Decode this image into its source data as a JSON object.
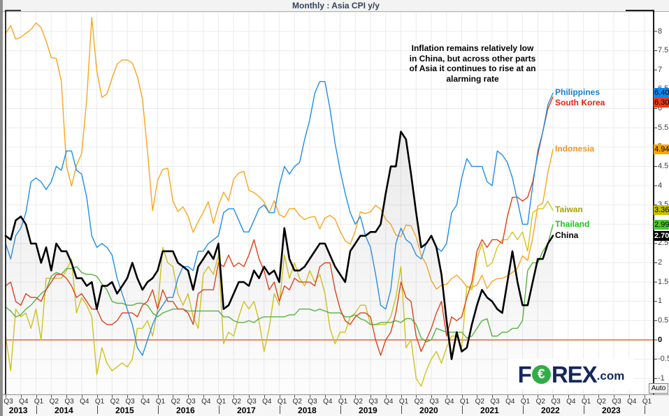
{
  "annotation": {
    "lines": [
      "Inflation remains relatively low",
      "in China, but across other parts",
      "of Asia it continues to rise at an",
      "alarming rate"
    ]
  },
  "watermark": {
    "text_left": "F",
    "symbol": "€",
    "text_right": "REX",
    "suffix": ".com"
  },
  "auto_button": {
    "label": "Auto"
  },
  "colors": {
    "zero_line": "#e8410e",
    "grid": "#ebebeb",
    "axis_frame": "#000000",
    "china_fill": "#8c8c8c"
  },
  "chart_data": {
    "type": "line",
    "title": "Monthly : Asia CPI y/y",
    "frequency": "monthly",
    "x_start": "2013-07",
    "x_axis_end": "2024-03",
    "data_end": "2022-07",
    "ylim": [
      -1.25,
      8.55
    ],
    "grid": true,
    "legend_position": "right-of-line-ends",
    "y_axis": {
      "ticks": [
        "-1",
        "-0.5",
        "0",
        "0.5",
        "1",
        "1.5",
        "2",
        "2.5",
        "3",
        "3.5",
        "4",
        "4.5",
        "5",
        "5.5",
        "6",
        "6.5",
        "7",
        "7.5",
        "8"
      ],
      "bold_tick": "0",
      "zero_line": true
    },
    "x_axis": {
      "quarters": [
        "Q3",
        "Q4",
        "Q1",
        "Q2",
        "Q3",
        "Q4",
        "Q1",
        "Q2",
        "Q3",
        "Q4",
        "Q1",
        "Q2",
        "Q3",
        "Q4",
        "Q1",
        "Q2",
        "Q3",
        "Q4",
        "Q1",
        "Q2",
        "Q3",
        "Q4",
        "Q1",
        "Q2",
        "Q3",
        "Q4",
        "Q1",
        "Q2",
        "Q3",
        "Q4",
        "Q1",
        "Q2",
        "Q3",
        "Q4",
        "Q1",
        "Q2",
        "Q3",
        "Q4",
        "Q1",
        "Q2",
        "Q3",
        "Q4",
        "Q1"
      ],
      "years": [
        "2013",
        "2014",
        "2015",
        "2016",
        "2017",
        "2018",
        "2019",
        "2020",
        "2021",
        "2022",
        "2023"
      ]
    },
    "series": [
      {
        "name": "Indonesia",
        "key": "indonesia",
        "color": "#f9a51f",
        "label_color": "#f7941e",
        "badge_bg": "#f9a400",
        "last_value_label": "4.940",
        "last_value": 4.94,
        "line_width": 1.4,
        "values": [
          7.95,
          8.15,
          7.8,
          7.85,
          7.95,
          8.05,
          8.22,
          8.1,
          7.75,
          7.32,
          7.3,
          6.7,
          4.53,
          3.99,
          4.53,
          4.83,
          6.23,
          8.36,
          6.96,
          6.29,
          6.38,
          6.79,
          7.15,
          7.26,
          7.26,
          7.18,
          6.83,
          6.25,
          4.89,
          3.35,
          4.14,
          4.42,
          4.45,
          3.6,
          3.33,
          3.45,
          3.21,
          2.79,
          3.07,
          3.31,
          3.58,
          3.02,
          3.49,
          3.83,
          3.61,
          4.17,
          4.33,
          4.37,
          3.88,
          3.82,
          3.72,
          3.58,
          3.3,
          3.61,
          3.25,
          3.18,
          3.4,
          3.41,
          3.23,
          3.12,
          3.18,
          3.2,
          2.88,
          3.16,
          3.23,
          3.13,
          2.82,
          2.57,
          2.48,
          2.83,
          3.32,
          3.28,
          3.32,
          3.49,
          3.39,
          3.13,
          3.0,
          2.72,
          2.68,
          2.98,
          2.96,
          2.67,
          2.19,
          1.96,
          1.54,
          1.32,
          1.42,
          1.44,
          1.59,
          1.68,
          1.55,
          1.38,
          1.37,
          1.42,
          1.68,
          1.33,
          1.52,
          1.59,
          1.6,
          1.66,
          1.75,
          1.87,
          2.18,
          2.06,
          2.64,
          3.47,
          3.55,
          4.35,
          4.94
        ]
      },
      {
        "name": "Taiwan",
        "key": "taiwan",
        "color": "#d2c516",
        "label_color": "#aaa000",
        "badge_bg": "#c9c000",
        "last_value_label": "3.360",
        "last_value": 3.36,
        "line_width": 1.4,
        "values": [
          0.1,
          -0.8,
          0.8,
          0.6,
          0.7,
          0.3,
          0.8,
          0.0,
          1.6,
          1.6,
          1.6,
          1.6,
          1.8,
          2.1,
          0.7,
          1.1,
          0.9,
          0.6,
          -0.9,
          -0.2,
          -0.6,
          -0.8,
          -0.7,
          -0.6,
          -0.7,
          -0.5,
          0.3,
          0.3,
          0.5,
          0.1,
          0.8,
          2.4,
          2.0,
          1.9,
          1.2,
          0.9,
          1.2,
          0.6,
          0.3,
          1.7,
          1.9,
          1.7,
          2.2,
          -0.1,
          0.2,
          0.1,
          0.6,
          1.0,
          0.8,
          1.0,
          0.5,
          -0.3,
          0.3,
          1.2,
          0.9,
          2.2,
          1.6,
          2.0,
          1.6,
          1.4,
          1.8,
          1.5,
          1.7,
          1.2,
          0.3,
          -0.1,
          0.2,
          0.2,
          0.6,
          0.7,
          0.9,
          0.9,
          0.4,
          0.4,
          0.4,
          0.4,
          0.6,
          1.1,
          1.9,
          -0.2,
          0.0,
          -1.0,
          -1.2,
          -0.8,
          -0.5,
          -0.3,
          -0.6,
          -0.2,
          0.1,
          0.1,
          -0.2,
          1.4,
          1.3,
          2.1,
          2.5,
          1.9,
          2.0,
          2.4,
          2.6,
          2.6,
          2.8,
          2.6,
          2.8,
          2.3,
          3.3,
          3.4,
          3.4,
          3.6,
          3.36
        ]
      },
      {
        "name": "Thailand",
        "key": "thailand",
        "color": "#53b53a",
        "label_color": "#1ec41e",
        "badge_bg": "#4ec72e",
        "last_value_label": "2.990",
        "last_value": 2.99,
        "line_width": 1.4,
        "values": [
          0.85,
          0.75,
          0.6,
          0.65,
          0.8,
          0.9,
          1.05,
          1.2,
          1.3,
          1.65,
          1.75,
          1.7,
          1.85,
          1.85,
          1.9,
          1.75,
          1.7,
          1.7,
          1.65,
          1.45,
          1.3,
          1.0,
          0.95,
          0.95,
          0.9,
          0.9,
          0.95,
          0.95,
          0.9,
          0.7,
          0.6,
          0.7,
          0.75,
          0.8,
          0.8,
          0.8,
          0.75,
          0.75,
          0.75,
          0.75,
          0.75,
          0.75,
          0.75,
          0.6,
          0.6,
          0.5,
          0.45,
          0.45,
          0.5,
          0.45,
          0.55,
          0.6,
          0.6,
          0.6,
          0.6,
          0.6,
          0.65,
          0.65,
          0.8,
          0.8,
          0.8,
          0.75,
          0.8,
          0.75,
          0.7,
          0.7,
          0.7,
          0.6,
          0.6,
          0.65,
          0.55,
          0.5,
          0.4,
          0.4,
          0.45,
          0.45,
          0.45,
          0.5,
          0.45,
          0.55,
          0.55,
          0.4,
          0.05,
          -0.05,
          0.0,
          0.3,
          0.25,
          0.2,
          0.2,
          0.2,
          0.2,
          0.05,
          0.1,
          0.3,
          0.5,
          0.55,
          0.1,
          0.1,
          0.2,
          0.2,
          0.3,
          0.3,
          0.5,
          1.8,
          2.0,
          2.0,
          2.3,
          2.5,
          2.99
        ]
      },
      {
        "name": "South Korea",
        "key": "south-korea",
        "color": "#e63c11",
        "label_color": "#e3230f",
        "badge_bg": "#ea3b10",
        "last_value_label": "6.300",
        "last_value": 6.3,
        "line_width": 1.4,
        "values": [
          1.4,
          1.5,
          1.0,
          0.9,
          1.2,
          1.1,
          1.1,
          1.0,
          1.3,
          1.5,
          1.7,
          1.7,
          1.6,
          1.4,
          1.1,
          1.2,
          1.0,
          0.8,
          0.8,
          0.5,
          0.4,
          0.4,
          0.5,
          0.7,
          0.7,
          0.7,
          0.6,
          0.9,
          1.0,
          1.3,
          0.8,
          1.3,
          1.0,
          1.0,
          0.8,
          0.8,
          0.7,
          0.4,
          1.2,
          1.3,
          1.3,
          1.3,
          2.0,
          1.9,
          2.2,
          1.9,
          2.0,
          1.9,
          2.2,
          2.6,
          2.1,
          1.8,
          1.3,
          1.5,
          1.0,
          1.4,
          1.3,
          1.6,
          1.5,
          1.5,
          1.5,
          1.4,
          1.9,
          2.0,
          2.0,
          1.3,
          0.8,
          0.5,
          0.4,
          0.6,
          0.7,
          0.7,
          0.6,
          0.0,
          -0.4,
          0.0,
          0.2,
          0.7,
          1.5,
          1.1,
          1.0,
          0.1,
          -0.3,
          0.0,
          0.3,
          0.7,
          1.0,
          0.1,
          0.6,
          0.5,
          0.6,
          1.1,
          1.5,
          2.3,
          2.6,
          2.4,
          2.6,
          2.6,
          2.5,
          3.2,
          3.7,
          3.7,
          3.6,
          3.7,
          4.1,
          4.8,
          5.4,
          6.0,
          6.3
        ]
      },
      {
        "name": "Philippines",
        "key": "philippines",
        "color": "#1f8ee9",
        "label_color": "#1581d9",
        "badge_bg": "#0b87ed",
        "last_value_label": "6.400",
        "last_value": 6.4,
        "line_width": 1.4,
        "values": [
          2.5,
          2.1,
          2.7,
          2.9,
          3.3,
          4.1,
          4.2,
          4.1,
          3.9,
          4.1,
          4.5,
          4.4,
          4.9,
          4.9,
          4.4,
          4.3,
          3.7,
          2.7,
          2.4,
          2.5,
          2.4,
          2.2,
          1.6,
          1.2,
          0.8,
          0.4,
          -0.2,
          -0.4,
          0.0,
          0.4,
          0.7,
          0.9,
          1.1,
          1.1,
          1.6,
          1.9,
          1.9,
          1.8,
          2.3,
          2.3,
          2.5,
          2.6,
          2.7,
          3.3,
          3.4,
          3.4,
          3.1,
          2.8,
          2.8,
          3.1,
          3.4,
          3.5,
          3.3,
          3.3,
          4.0,
          4.5,
          4.3,
          4.5,
          4.6,
          5.2,
          5.7,
          6.4,
          6.7,
          6.7,
          6.0,
          5.1,
          4.4,
          3.8,
          3.3,
          3.0,
          3.2,
          2.7,
          2.4,
          1.7,
          0.9,
          0.8,
          1.3,
          2.5,
          2.9,
          2.6,
          2.5,
          2.2,
          2.1,
          2.5,
          2.7,
          2.4,
          2.3,
          2.5,
          3.3,
          3.5,
          4.2,
          4.7,
          4.5,
          4.5,
          4.5,
          4.1,
          4.0,
          4.9,
          4.8,
          4.6,
          4.2,
          3.6,
          3.0,
          3.0,
          4.0,
          4.9,
          5.4,
          6.1,
          6.4
        ]
      },
      {
        "name": "China",
        "key": "china",
        "color": "#000000",
        "label_color": "#000000",
        "badge_bg": "#000000",
        "last_value_label": "2.700",
        "last_value": 2.7,
        "line_width": 2.6,
        "area_fill": true,
        "values": [
          2.7,
          2.6,
          3.1,
          3.2,
          3.0,
          2.5,
          2.5,
          2.0,
          2.4,
          1.8,
          2.5,
          2.3,
          2.3,
          2.0,
          1.6,
          1.6,
          1.4,
          1.5,
          0.8,
          1.4,
          1.4,
          1.5,
          1.2,
          1.4,
          1.6,
          2.0,
          1.6,
          1.3,
          1.5,
          1.6,
          1.8,
          2.3,
          2.3,
          2.3,
          2.0,
          1.9,
          1.8,
          1.3,
          1.9,
          2.1,
          2.3,
          2.1,
          2.5,
          0.8,
          0.9,
          1.2,
          1.5,
          1.5,
          1.4,
          1.8,
          1.6,
          1.9,
          1.7,
          1.8,
          1.5,
          2.9,
          2.1,
          1.8,
          1.8,
          1.9,
          2.1,
          2.3,
          2.5,
          2.5,
          2.2,
          1.9,
          1.7,
          1.5,
          2.3,
          2.5,
          2.7,
          2.7,
          2.8,
          2.8,
          3.0,
          3.8,
          4.5,
          4.5,
          5.4,
          5.2,
          4.3,
          3.3,
          2.4,
          2.5,
          2.7,
          2.4,
          1.7,
          0.5,
          -0.5,
          0.2,
          -0.3,
          -0.2,
          0.4,
          0.9,
          1.3,
          1.1,
          1.0,
          0.8,
          0.7,
          1.5,
          2.3,
          1.5,
          0.9,
          0.9,
          1.5,
          2.1,
          2.1,
          2.5,
          2.7
        ]
      }
    ]
  }
}
